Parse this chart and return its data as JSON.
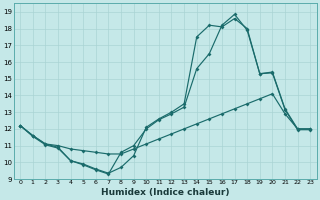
{
  "xlabel": "Humidex (Indice chaleur)",
  "xlim": [
    -0.5,
    23.5
  ],
  "ylim": [
    9,
    19.5
  ],
  "yticks": [
    9,
    10,
    11,
    12,
    13,
    14,
    15,
    16,
    17,
    18,
    19
  ],
  "xticks": [
    0,
    1,
    2,
    3,
    4,
    5,
    6,
    7,
    8,
    9,
    10,
    11,
    12,
    13,
    14,
    15,
    16,
    17,
    18,
    19,
    20,
    21,
    22,
    23
  ],
  "bg_color": "#c5e8e8",
  "grid_color": "#aad4d4",
  "line_color": "#1a6b6b",
  "series1_x": [
    0,
    1,
    2,
    3,
    4,
    5,
    6,
    7,
    8,
    9,
    10,
    11,
    12,
    13,
    14,
    15,
    16,
    17,
    18,
    19,
    20,
    21,
    22,
    23
  ],
  "series1_y": [
    12.2,
    11.6,
    11.1,
    11.0,
    10.8,
    10.7,
    10.6,
    10.5,
    10.5,
    10.8,
    11.1,
    11.4,
    11.7,
    12.0,
    12.3,
    12.6,
    12.9,
    13.2,
    13.5,
    13.8,
    14.1,
    12.9,
    12.0,
    12.0
  ],
  "series2_x": [
    0,
    1,
    2,
    3,
    4,
    5,
    6,
    7,
    8,
    9,
    10,
    11,
    12,
    13,
    14,
    15,
    16,
    17,
    18,
    19,
    20,
    21,
    22,
    23
  ],
  "series2_y": [
    12.2,
    11.6,
    11.1,
    10.9,
    10.1,
    9.9,
    9.6,
    9.35,
    9.7,
    10.4,
    12.1,
    12.6,
    13.0,
    13.5,
    17.5,
    18.2,
    18.1,
    18.6,
    18.0,
    15.3,
    15.4,
    13.2,
    12.0,
    12.0
  ],
  "series3_x": [
    0,
    1,
    2,
    3,
    4,
    5,
    6,
    7,
    8,
    9,
    10,
    11,
    12,
    13,
    14,
    15,
    16,
    17,
    18,
    19,
    20,
    21,
    22,
    23
  ],
  "series3_y": [
    12.2,
    11.55,
    11.05,
    10.85,
    10.1,
    9.85,
    9.55,
    9.3,
    10.6,
    11.0,
    12.0,
    12.55,
    12.9,
    13.3,
    15.6,
    16.5,
    18.2,
    18.85,
    17.9,
    15.3,
    15.35,
    13.15,
    11.95,
    11.95
  ]
}
